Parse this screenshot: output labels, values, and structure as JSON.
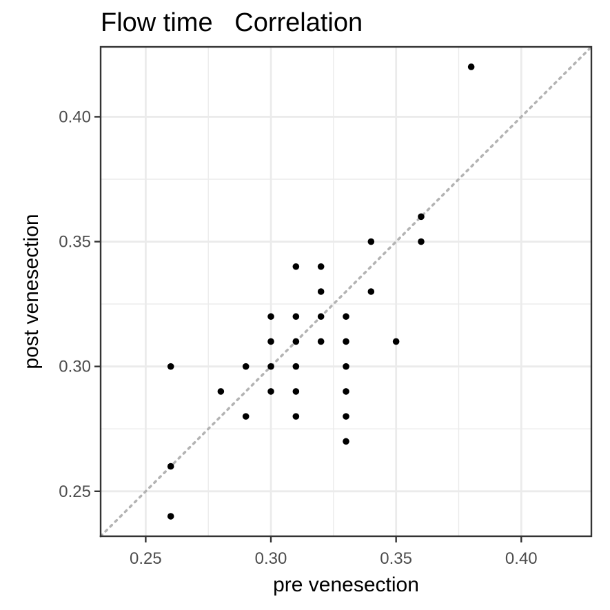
{
  "chart_data": {
    "type": "scatter",
    "title": "Flow time   Correlation",
    "xlabel": "pre venesection",
    "ylabel": "post venesection",
    "xlim": [
      0.232,
      0.428
    ],
    "ylim": [
      0.232,
      0.428
    ],
    "xticks": [
      "0.25",
      "0.30",
      "0.35",
      "0.40"
    ],
    "yticks": [
      "0.25",
      "0.30",
      "0.35",
      "0.40"
    ],
    "grid": true,
    "legend": "none",
    "reference_line": {
      "type": "identity",
      "style": "dotted",
      "color": "#b3b3b3"
    },
    "point_color": "#000000",
    "points": [
      {
        "x": 0.26,
        "y": 0.24
      },
      {
        "x": 0.26,
        "y": 0.26
      },
      {
        "x": 0.26,
        "y": 0.3
      },
      {
        "x": 0.28,
        "y": 0.29
      },
      {
        "x": 0.29,
        "y": 0.28
      },
      {
        "x": 0.29,
        "y": 0.3
      },
      {
        "x": 0.3,
        "y": 0.29
      },
      {
        "x": 0.3,
        "y": 0.3
      },
      {
        "x": 0.3,
        "y": 0.31
      },
      {
        "x": 0.3,
        "y": 0.32
      },
      {
        "x": 0.31,
        "y": 0.28
      },
      {
        "x": 0.31,
        "y": 0.29
      },
      {
        "x": 0.31,
        "y": 0.3
      },
      {
        "x": 0.31,
        "y": 0.31
      },
      {
        "x": 0.31,
        "y": 0.32
      },
      {
        "x": 0.31,
        "y": 0.34
      },
      {
        "x": 0.32,
        "y": 0.31
      },
      {
        "x": 0.32,
        "y": 0.32
      },
      {
        "x": 0.32,
        "y": 0.33
      },
      {
        "x": 0.32,
        "y": 0.34
      },
      {
        "x": 0.33,
        "y": 0.27
      },
      {
        "x": 0.33,
        "y": 0.28
      },
      {
        "x": 0.33,
        "y": 0.29
      },
      {
        "x": 0.33,
        "y": 0.3
      },
      {
        "x": 0.33,
        "y": 0.31
      },
      {
        "x": 0.33,
        "y": 0.32
      },
      {
        "x": 0.34,
        "y": 0.33
      },
      {
        "x": 0.34,
        "y": 0.35
      },
      {
        "x": 0.35,
        "y": 0.31
      },
      {
        "x": 0.36,
        "y": 0.35
      },
      {
        "x": 0.36,
        "y": 0.36
      },
      {
        "x": 0.38,
        "y": 0.42
      }
    ]
  }
}
